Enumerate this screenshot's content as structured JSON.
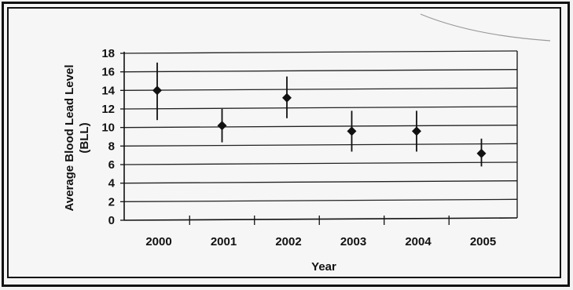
{
  "chart_data": {
    "type": "scatter",
    "title": "",
    "xlabel": "Year",
    "ylabel_line1": "Average Blood Lead Level",
    "ylabel_line2": "(BLL)",
    "categories": [
      "2000",
      "2001",
      "2002",
      "2003",
      "2004",
      "2005"
    ],
    "values": [
      14,
      10.2,
      13.2,
      9.6,
      9.6,
      7.2
    ],
    "error_low": [
      10.8,
      8.4,
      11,
      7.4,
      7.4,
      5.8
    ],
    "error_high": [
      17,
      12,
      15.5,
      11.8,
      11.8,
      8.8
    ],
    "ylim": [
      0,
      18
    ],
    "yticks": [
      "0",
      "2",
      "4",
      "6",
      "8",
      "10",
      "12",
      "14",
      "16",
      "18"
    ],
    "grid": true,
    "legend": false,
    "colors": {
      "marker": "#111111",
      "grid": "#222222"
    }
  }
}
